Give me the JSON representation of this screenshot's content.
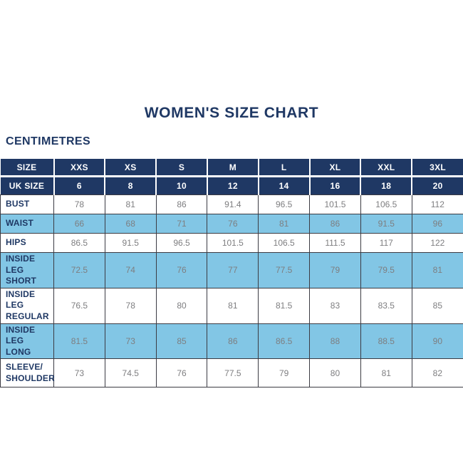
{
  "page": {
    "title": "WOMEN'S SIZE CHART",
    "unit_label": "CENTIMETRES"
  },
  "colors": {
    "navy": "#1F3864",
    "light_blue": "#82C6E5",
    "value_gray": "#7E7E80",
    "border": "#3B3B43",
    "background": "#FFFFFF",
    "header_text": "#FFFFFF"
  },
  "table": {
    "header_rows": [
      {
        "label": "SIZE",
        "values": [
          "XXS",
          "XS",
          "S",
          "M",
          "L",
          "XL",
          "XXL",
          "3XL"
        ]
      },
      {
        "label": "UK SIZE",
        "values": [
          "6",
          "8",
          "10",
          "12",
          "14",
          "16",
          "18",
          "20"
        ]
      }
    ],
    "rows": [
      {
        "label": "BUST",
        "values": [
          "78",
          "81",
          "86",
          "91.4",
          "96.5",
          "101.5",
          "106.5",
          "112"
        ]
      },
      {
        "label": "WAIST",
        "values": [
          "66",
          "68",
          "71",
          "76",
          "81",
          "86",
          "91.5",
          "96"
        ]
      },
      {
        "label": "HIPS",
        "values": [
          "86.5",
          "91.5",
          "96.5",
          "101.5",
          "106.5",
          "111.5",
          "117",
          "122"
        ]
      },
      {
        "label": "INSIDE LEG\nSHORT",
        "values": [
          "72.5",
          "74",
          "76",
          "77",
          "77.5",
          "79",
          "79.5",
          "81"
        ]
      },
      {
        "label": "INSIDE LEG\nREGULAR",
        "values": [
          "76.5",
          "78",
          "80",
          "81",
          "81.5",
          "83",
          "83.5",
          "85"
        ]
      },
      {
        "label": "INSIDE LEG\nLONG",
        "values": [
          "81.5",
          "73",
          "85",
          "86",
          "86.5",
          "88",
          "88.5",
          "90"
        ]
      },
      {
        "label": "SLEEVE/\nSHOULDER",
        "values": [
          "73",
          "74.5",
          "76",
          "77.5",
          "79",
          "80",
          "81",
          "82"
        ]
      }
    ]
  }
}
